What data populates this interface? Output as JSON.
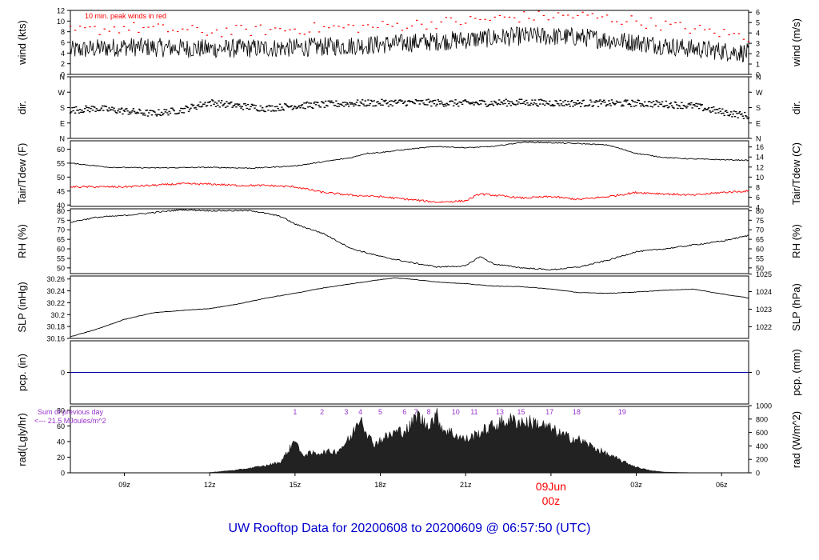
{
  "title": "UW Rooftop Data for 20200608  to  20200609 @ 06:57:50  (UTC)",
  "colors": {
    "title": "#0000cc",
    "peak": "#ff0000",
    "dew": "#ff0000",
    "precip": "#0000aa",
    "rad_label": "#9933cc",
    "date": "#ff0000",
    "line": "#000000"
  },
  "x_axis": {
    "ticks": [
      {
        "hour": 9,
        "label": "09z"
      },
      {
        "hour": 12,
        "label": "12z"
      },
      {
        "hour": 15,
        "label": "15z"
      },
      {
        "hour": 18,
        "label": "18z"
      },
      {
        "hour": 21,
        "label": "21z"
      },
      {
        "hour": 24,
        "label": "00z"
      },
      {
        "hour": 27,
        "label": "03z"
      },
      {
        "hour": 30,
        "label": "06z"
      }
    ],
    "date_label": "09Jun",
    "date_hour": "00z",
    "start_hour": 7.1,
    "end_hour": 30.95
  },
  "chart_data": [
    {
      "type": "line",
      "panel": "wind",
      "ylabel": "wind (kts)",
      "ylabel_right": "wind (m/s)",
      "annotation": "10 min. peak winds in red",
      "ylim": [
        0,
        12
      ],
      "yticks": [
        0,
        2,
        4,
        6,
        8,
        10,
        12
      ],
      "yticks_right": [
        0,
        1,
        2,
        3,
        4,
        5,
        6
      ],
      "y2_factor": 0.514444,
      "series": [
        {
          "name": "",
          "x": [
            7.1,
            9,
            12,
            15,
            18,
            21,
            23,
            25,
            27,
            29,
            30.95
          ],
          "y": [
            4.5,
            5.2,
            4.8,
            5.0,
            5.6,
            6.5,
            7.2,
            7.0,
            6.0,
            4.8,
            4.0
          ]
        },
        {
          "name": "10 min. peak winds in red",
          "x": [
            7.1,
            9,
            12,
            15,
            18,
            21,
            23,
            25,
            27,
            29,
            30.95
          ],
          "y": [
            8.0,
            8.8,
            8.0,
            8.5,
            9.0,
            10.0,
            10.8,
            11.0,
            10.0,
            8.5,
            7.0
          ]
        }
      ]
    },
    {
      "type": "scatter",
      "panel": "direction",
      "ylabel": "dir.",
      "ylabel_right": "dir.",
      "ylim": [
        0,
        360
      ],
      "yticks": [
        0,
        90,
        180,
        270,
        360
      ],
      "ytick_labels": [
        "N",
        "E",
        "S",
        "W",
        "N"
      ],
      "series": [
        {
          "name": "",
          "x": [
            7.1,
            8,
            9,
            10,
            11,
            12,
            13,
            14,
            15,
            17,
            19,
            21,
            23,
            25,
            27,
            28,
            29,
            30,
            30.95
          ],
          "y": [
            165,
            175,
            160,
            145,
            165,
            210,
            190,
            175,
            190,
            205,
            210,
            205,
            210,
            205,
            205,
            200,
            190,
            155,
            130
          ]
        }
      ]
    },
    {
      "type": "line",
      "panel": "temperature",
      "ylabel": "Tair/Tdew (F)",
      "ylabel_right": "Tair/Tdew (C)",
      "ylim": [
        39.5,
        63
      ],
      "yticks": [
        40,
        45,
        50,
        55,
        60
      ],
      "yticks_right": [
        4,
        6,
        8,
        10,
        12,
        14,
        16
      ],
      "y2_unit": "C_from_F",
      "series": [
        {
          "name": "",
          "x": [
            7.1,
            8.5,
            10,
            12,
            13.5,
            15,
            16,
            17,
            17.5,
            18,
            19,
            20,
            21,
            22,
            23,
            24,
            25,
            26,
            27,
            28,
            29,
            30.95
          ],
          "y": [
            55.0,
            53.5,
            53.3,
            53.5,
            53.2,
            54.0,
            55.5,
            57.0,
            58.5,
            58.8,
            60.0,
            61.0,
            60.5,
            61.0,
            62.5,
            62.3,
            62.0,
            61.5,
            58.5,
            57.0,
            56.5,
            56.0
          ]
        },
        {
          "name": "",
          "x": [
            7.1,
            9,
            11,
            12,
            13,
            14,
            15,
            16,
            17,
            18,
            19,
            20,
            21,
            21.5,
            22,
            23,
            24,
            25,
            26,
            27,
            28,
            29,
            30,
            30.95
          ],
          "y": [
            46.5,
            46.5,
            47.6,
            47.5,
            47.0,
            47.0,
            46.5,
            44.5,
            43.5,
            43.0,
            42.0,
            41.0,
            41.5,
            44.0,
            43.5,
            42.5,
            43.0,
            42.0,
            43.0,
            44.5,
            44.0,
            43.5,
            44.5,
            45.0
          ]
        }
      ]
    },
    {
      "type": "line",
      "panel": "humidity",
      "ylabel": "RH (%)",
      "ylabel_right": "RH (%)",
      "ylim": [
        47,
        81
      ],
      "yticks": [
        50,
        55,
        60,
        65,
        70,
        75,
        80
      ],
      "series": [
        {
          "name": "",
          "x": [
            7.1,
            8,
            9,
            10,
            11,
            12,
            13.5,
            14.5,
            15,
            16,
            17,
            18,
            19,
            20,
            21,
            21.5,
            22,
            23,
            24,
            25,
            26,
            27,
            28,
            29,
            30,
            30.95
          ],
          "y": [
            74.0,
            76.5,
            77.5,
            79.0,
            80.5,
            80.0,
            80.0,
            77.0,
            73.0,
            68.0,
            60.0,
            56.0,
            53.0,
            50.5,
            51.0,
            56.0,
            52.0,
            50.0,
            49.0,
            50.5,
            54.0,
            58.5,
            60.0,
            62.0,
            64.0,
            67.0
          ]
        }
      ]
    },
    {
      "type": "line",
      "panel": "pressure",
      "ylabel": "SLP (inHg)",
      "ylabel_right": "SLP (hPa)",
      "ylim": [
        30.16,
        30.265
      ],
      "yticks": [
        30.16,
        30.18,
        30.2,
        30.22,
        30.24,
        30.26
      ],
      "yticks_right": [
        1022,
        1023,
        1024,
        1025
      ],
      "y2_unit": "hPa_from_inHg",
      "series": [
        {
          "name": "",
          "x": [
            7.1,
            8,
            9,
            10,
            11,
            12,
            13,
            14,
            15,
            16,
            17,
            18,
            18.5,
            19,
            20,
            21,
            22,
            23,
            24,
            25,
            26,
            27,
            28,
            29,
            30,
            30.95
          ],
          "y": [
            30.163,
            30.175,
            30.192,
            30.203,
            30.207,
            30.21,
            30.218,
            30.228,
            30.236,
            30.245,
            30.252,
            30.259,
            30.262,
            30.26,
            30.255,
            30.252,
            30.248,
            30.247,
            30.243,
            30.237,
            30.236,
            30.238,
            30.241,
            30.243,
            30.235,
            30.228
          ]
        }
      ]
    },
    {
      "type": "line",
      "panel": "precipitation",
      "ylabel": "pcp. (in)",
      "ylabel_right": "pcp. (mm)",
      "ylim": [
        -1,
        1
      ],
      "yticks": [
        0
      ],
      "yticks_right": [
        0
      ],
      "series": [
        {
          "name": "",
          "x": [
            7.1,
            30.95
          ],
          "y": [
            0,
            0
          ]
        }
      ]
    },
    {
      "type": "area",
      "panel": "radiation",
      "ylabel": "rad(Lgly/hr)",
      "ylabel_right": "rad (W/m^2)",
      "note_line1": "Sum of previous day",
      "note_line2": "<--- 21.5 MJoules/m^2",
      "ylim": [
        0,
        85
      ],
      "yticks": [
        0,
        20,
        40,
        60,
        80
      ],
      "yticks_right": [
        0,
        200,
        400,
        600,
        800,
        1000
      ],
      "y2_factor": 11.63,
      "series": [
        {
          "name": "",
          "x": [
            12,
            13,
            14,
            14.5,
            14.9,
            15.0,
            15.2,
            16,
            16.5,
            17.0,
            17.3,
            17.6,
            17.8,
            18,
            18.5,
            19,
            19.3,
            19.6,
            20,
            20.2,
            20.5,
            21,
            21.5,
            22,
            22.5,
            23,
            23.5,
            24,
            24.5,
            25,
            25.5,
            26,
            26.5,
            27,
            27.5,
            28,
            29
          ],
          "y": [
            0.5,
            4,
            10,
            15,
            38,
            50,
            25,
            28,
            30,
            50,
            80,
            48,
            40,
            45,
            55,
            60,
            80,
            65,
            78,
            60,
            55,
            45,
            55,
            65,
            72,
            70,
            68,
            60,
            50,
            45,
            35,
            25,
            16,
            8,
            3,
            1,
            0.2
          ]
        }
      ],
      "markers": [
        {
          "hour": 15.0,
          "label": "1"
        },
        {
          "hour": 15.95,
          "label": "2"
        },
        {
          "hour": 16.8,
          "label": "3"
        },
        {
          "hour": 17.3,
          "label": "4"
        },
        {
          "hour": 18.0,
          "label": "5"
        },
        {
          "hour": 18.85,
          "label": "6"
        },
        {
          "hour": 19.25,
          "label": "7"
        },
        {
          "hour": 19.7,
          "label": "8"
        },
        {
          "hour": 20.65,
          "label": "10"
        },
        {
          "hour": 21.3,
          "label": "11"
        },
        {
          "hour": 22.2,
          "label": "13"
        },
        {
          "hour": 22.95,
          "label": "15"
        },
        {
          "hour": 23.95,
          "label": "17"
        },
        {
          "hour": 24.9,
          "label": "18"
        },
        {
          "hour": 26.5,
          "label": "19"
        }
      ]
    }
  ]
}
